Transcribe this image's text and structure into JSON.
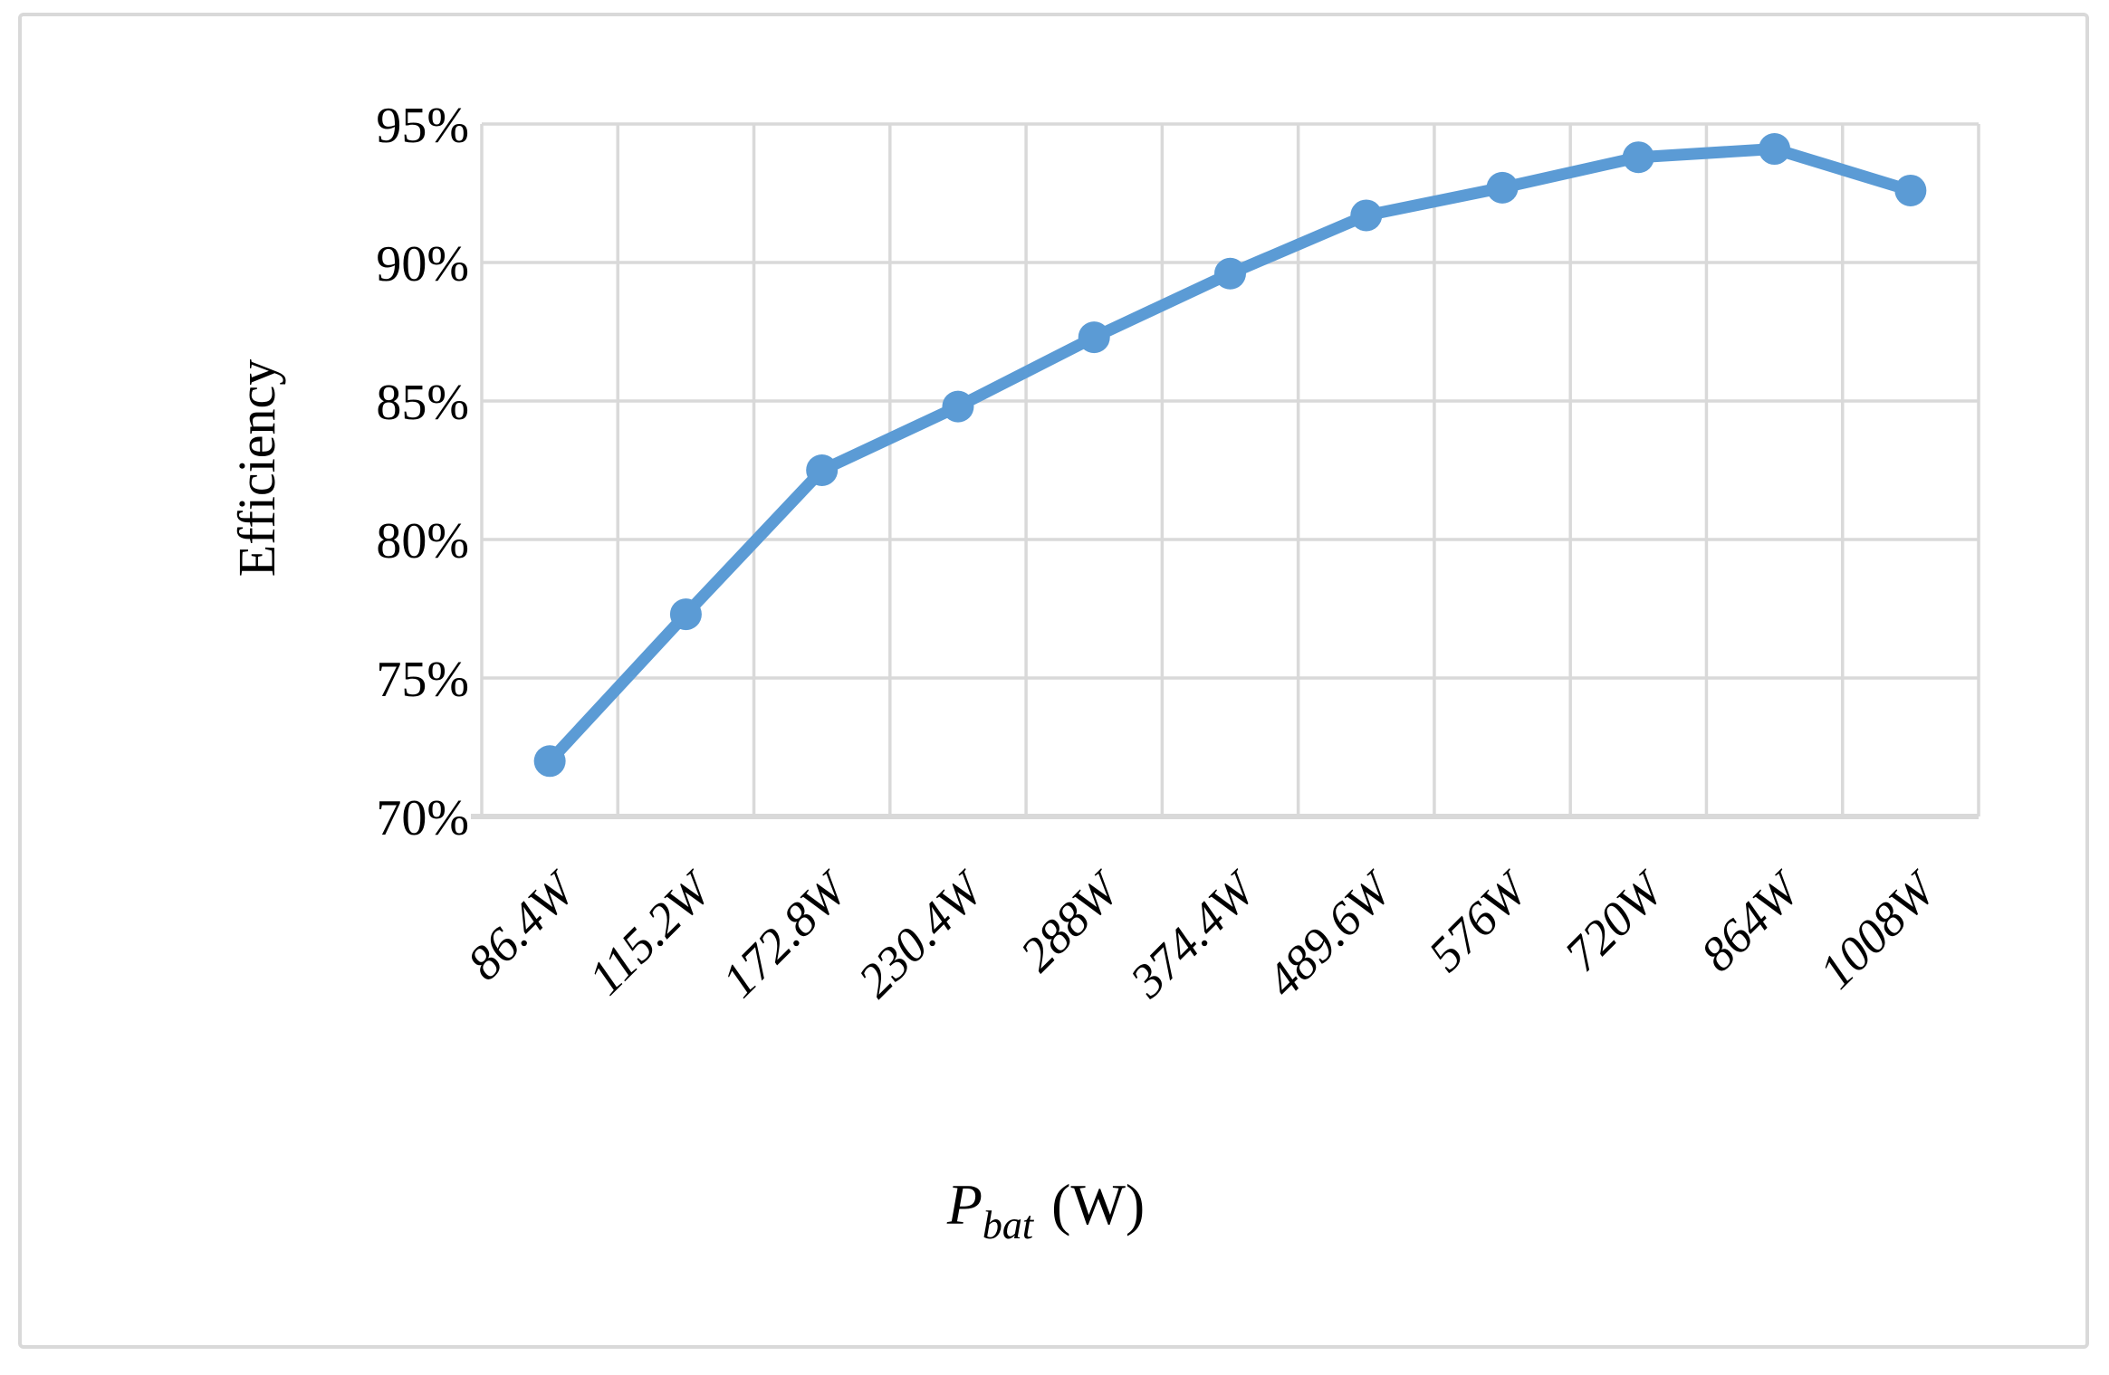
{
  "chart_data": {
    "type": "line",
    "title": "",
    "ylabel": "Efficiency",
    "xlabel": "Pbat (W)",
    "xlabel_parts": {
      "symbol": "P",
      "subscript": "bat",
      "unit": "(W)"
    },
    "categories": [
      "86.4W",
      "115.2W",
      "172.8W",
      "230.4W",
      "288W",
      "374.4W",
      "489.6W",
      "576W",
      "720W",
      "864W",
      "1008W"
    ],
    "series": [
      {
        "name": "Efficiency",
        "color": "#5B9BD5",
        "values": [
          72.0,
          77.3,
          82.5,
          84.8,
          87.3,
          89.6,
          91.7,
          92.7,
          93.8,
          94.1,
          92.6
        ]
      }
    ],
    "ylim": [
      70,
      95
    ],
    "ytick_step": 5,
    "ytick_labels_top_to_bottom": [
      "95%",
      "90%",
      "85%",
      "80%",
      "75%",
      "70%"
    ],
    "grid": {
      "horizontal": true,
      "vertical": true,
      "color": "#D9D9D9"
    },
    "axis_line_color": "#D9D9D9",
    "legend": "none",
    "marker": "circle",
    "text_color": "#000000",
    "background": "#FFFFFF",
    "border_color": "#D9D9D9"
  }
}
